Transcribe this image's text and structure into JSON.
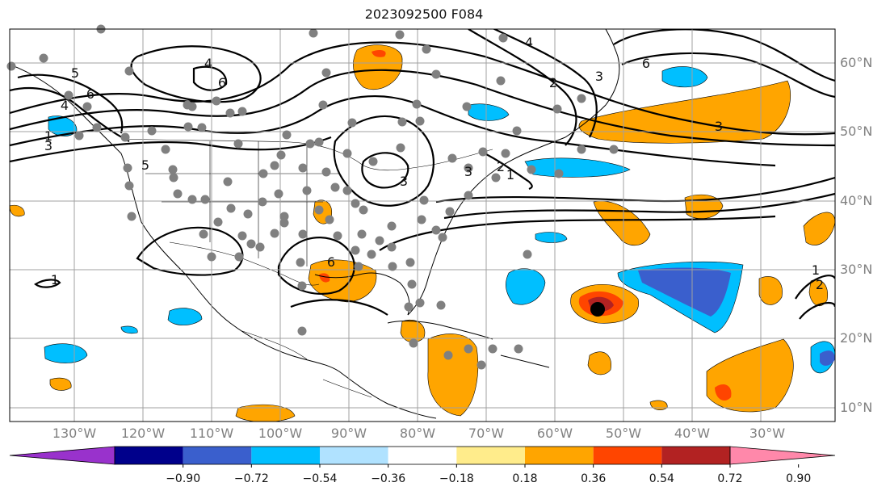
{
  "title": "2023092500 F084",
  "map": {
    "lat_labels": [
      "60°N",
      "50°N",
      "40°N",
      "30°N",
      "20°N",
      "10°N"
    ],
    "lon_labels": [
      "130°W",
      "120°W",
      "110°W",
      "100°W",
      "90°W",
      "80°W",
      "70°W",
      "60°W",
      "50°W",
      "40°W",
      "30°W"
    ],
    "contour_labels": [
      "5",
      "6",
      "4",
      "3",
      "4",
      "6",
      "1",
      "6",
      "5",
      "3",
      "3",
      "1",
      "2",
      "1",
      "4",
      "2",
      "3",
      "3",
      "6",
      "2",
      "1"
    ]
  },
  "colorbar": {
    "tick_labels": [
      "−0.90",
      "−0.72",
      "−0.54",
      "−0.36",
      "−0.18",
      "0.18",
      "0.36",
      "0.54",
      "0.72",
      "0.90"
    ],
    "colors": [
      "#9932cc",
      "#00008b",
      "#3a5fcd",
      "#00bfff",
      "#b0e2ff",
      "#ffffff",
      "#ffec8b",
      "#ffa500",
      "#ff4500",
      "#b22222",
      "#ff88aa"
    ]
  },
  "colors": {
    "grid": "#a0a0a0",
    "coast": "#000000",
    "stations": "#808080",
    "storm": "#000000"
  }
}
